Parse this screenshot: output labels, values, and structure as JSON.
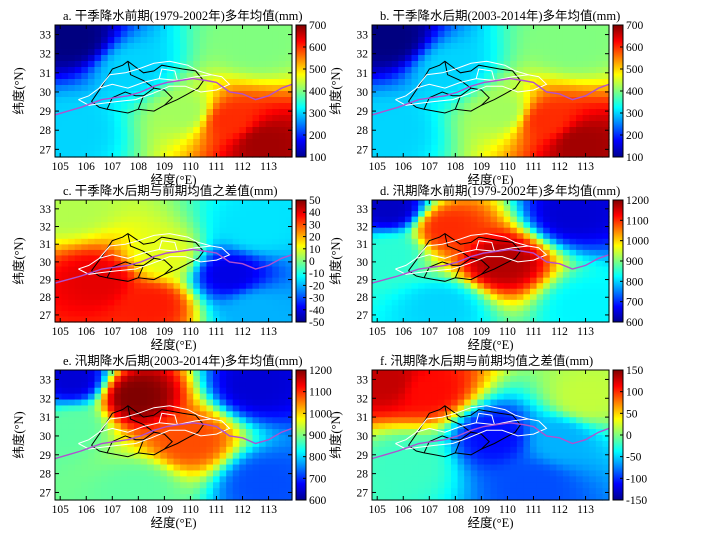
{
  "figure": {
    "x_axis_label": "经度(°E)",
    "y_axis_label": "纬度(°N)"
  },
  "chart_data": [
    {
      "type": "heatmap",
      "title": "a. 干季降水前期(1979-2002年)多年均值(mm)",
      "xlabel": "经度(°E)",
      "ylabel": "纬度(°N)",
      "xlim": [
        104.8,
        113.9
      ],
      "ylim": [
        26.6,
        33.5
      ],
      "xticks": [
        105,
        106,
        107,
        108,
        109,
        110,
        111,
        112,
        113
      ],
      "yticks": [
        27,
        28,
        29,
        30,
        31,
        32,
        33
      ],
      "colorbar": {
        "min": 100,
        "max": 700,
        "ticks": [
          100,
          200,
          300,
          400,
          500,
          600,
          700
        ]
      },
      "field_regions": [
        {
          "lon": 105.5,
          "lat": 32.8,
          "value": 100
        },
        {
          "lon": 107.8,
          "lat": 31.2,
          "value": 300
        },
        {
          "lon": 105.5,
          "lat": 28.0,
          "value": 300
        },
        {
          "lon": 109.8,
          "lat": 29.0,
          "value": 420
        },
        {
          "lon": 112.8,
          "lat": 27.3,
          "value": 680
        },
        {
          "lon": 111.5,
          "lat": 28.5,
          "value": 600
        },
        {
          "lon": 112.5,
          "lat": 32.5,
          "value": 400
        }
      ]
    },
    {
      "type": "heatmap",
      "title": "b. 干季降水后期(2003-2014年)多年均值(mm)",
      "xlabel": "经度(°E)",
      "ylabel": "纬度(°N)",
      "xlim": [
        104.8,
        113.9
      ],
      "ylim": [
        26.6,
        33.5
      ],
      "xticks": [
        105,
        106,
        107,
        108,
        109,
        110,
        111,
        112,
        113
      ],
      "yticks": [
        27,
        28,
        29,
        30,
        31,
        32,
        33
      ],
      "colorbar": {
        "min": 100,
        "max": 700,
        "ticks": [
          100,
          200,
          300,
          400,
          500,
          600,
          700
        ]
      },
      "field_regions": [
        {
          "lon": 105.5,
          "lat": 32.8,
          "value": 100
        },
        {
          "lon": 107.8,
          "lat": 31.2,
          "value": 300
        },
        {
          "lon": 105.5,
          "lat": 28.0,
          "value": 300
        },
        {
          "lon": 109.8,
          "lat": 29.0,
          "value": 420
        },
        {
          "lon": 112.8,
          "lat": 27.3,
          "value": 680
        },
        {
          "lon": 111.5,
          "lat": 28.5,
          "value": 600
        },
        {
          "lon": 112.5,
          "lat": 32.5,
          "value": 400
        }
      ]
    },
    {
      "type": "heatmap",
      "title": "c. 干季降水后期与前期均值之差值(mm)",
      "xlabel": "经度(°E)",
      "ylabel": "纬度(°N)",
      "xlim": [
        104.8,
        113.9
      ],
      "ylim": [
        26.6,
        33.5
      ],
      "xticks": [
        105,
        106,
        107,
        108,
        109,
        110,
        111,
        112,
        113
      ],
      "yticks": [
        27,
        28,
        29,
        30,
        31,
        32,
        33
      ],
      "colorbar": {
        "min": -50,
        "max": 50,
        "ticks": [
          50,
          40,
          30,
          20,
          10,
          0,
          -10,
          -20,
          -30,
          -40,
          -50
        ]
      },
      "field_regions": [
        {
          "lon": 106.5,
          "lat": 28.9,
          "value": 40
        },
        {
          "lon": 108.5,
          "lat": 27.6,
          "value": 35
        },
        {
          "lon": 109.0,
          "lat": 30.3,
          "value": 10
        },
        {
          "lon": 111.5,
          "lat": 29.3,
          "value": -40
        },
        {
          "lon": 112.5,
          "lat": 27.3,
          "value": -20
        },
        {
          "lon": 112.5,
          "lat": 31.8,
          "value": -15
        },
        {
          "lon": 105.3,
          "lat": 33.1,
          "value": 5
        }
      ]
    },
    {
      "type": "heatmap",
      "title": "d. 汛期降水前期(1979-2002年)多年均值(mm)",
      "xlabel": "经度(°E)",
      "ylabel": "纬度(°N)",
      "xlim": [
        104.8,
        113.9
      ],
      "ylim": [
        26.6,
        33.5
      ],
      "xticks": [
        105,
        106,
        107,
        108,
        109,
        110,
        111,
        112,
        113
      ],
      "yticks": [
        27,
        28,
        29,
        30,
        31,
        32,
        33
      ],
      "colorbar": {
        "min": 600,
        "max": 1200,
        "ticks": [
          600,
          700,
          800,
          900,
          1000,
          1100,
          1200
        ]
      },
      "field_regions": [
        {
          "lon": 107.7,
          "lat": 31.9,
          "value": 1100
        },
        {
          "lon": 109.8,
          "lat": 30.0,
          "value": 1170
        },
        {
          "lon": 105.5,
          "lat": 30.5,
          "value": 850
        },
        {
          "lon": 105.5,
          "lat": 33.0,
          "value": 640
        },
        {
          "lon": 112.5,
          "lat": 32.7,
          "value": 650
        },
        {
          "lon": 113.0,
          "lat": 27.5,
          "value": 820
        },
        {
          "lon": 107.5,
          "lat": 27.5,
          "value": 800
        }
      ]
    },
    {
      "type": "heatmap",
      "title": "e. 汛期降水后期(2003-2014年)多年均值(mm)",
      "xlabel": "经度(°E)",
      "ylabel": "纬度(°N)",
      "xlim": [
        104.8,
        113.9
      ],
      "ylim": [
        26.6,
        33.5
      ],
      "xticks": [
        105,
        106,
        107,
        108,
        109,
        110,
        111,
        112,
        113
      ],
      "yticks": [
        27,
        28,
        29,
        30,
        31,
        32,
        33
      ],
      "colorbar": {
        "min": 600,
        "max": 1200,
        "ticks": [
          600,
          700,
          800,
          900,
          1000,
          1100,
          1200
        ]
      },
      "field_regions": [
        {
          "lon": 107.9,
          "lat": 32.1,
          "value": 1200
        },
        {
          "lon": 110.0,
          "lat": 29.8,
          "value": 1080
        },
        {
          "lon": 105.5,
          "lat": 30.5,
          "value": 880
        },
        {
          "lon": 105.5,
          "lat": 33.0,
          "value": 650
        },
        {
          "lon": 112.5,
          "lat": 32.7,
          "value": 650
        },
        {
          "lon": 112.8,
          "lat": 27.5,
          "value": 720
        },
        {
          "lon": 108.0,
          "lat": 27.2,
          "value": 880
        }
      ]
    },
    {
      "type": "heatmap",
      "title": "f. 汛期降水后期与前期均值之差值(mm)",
      "xlabel": "经度(°E)",
      "ylabel": "纬度(°N)",
      "xlim": [
        104.8,
        113.9
      ],
      "ylim": [
        26.6,
        33.5
      ],
      "xticks": [
        105,
        106,
        107,
        108,
        109,
        110,
        111,
        112,
        113
      ],
      "yticks": [
        27,
        28,
        29,
        30,
        31,
        32,
        33
      ],
      "colorbar": {
        "min": -150,
        "max": 150,
        "ticks": [
          150,
          100,
          50,
          0,
          -50,
          -100,
          -150
        ]
      },
      "field_regions": [
        {
          "lon": 107.0,
          "lat": 32.4,
          "value": 110
        },
        {
          "lon": 105.4,
          "lat": 32.9,
          "value": 130
        },
        {
          "lon": 109.5,
          "lat": 30.0,
          "value": -110
        },
        {
          "lon": 112.0,
          "lat": 29.8,
          "value": -60
        },
        {
          "lon": 111.0,
          "lat": 27.4,
          "value": -90
        },
        {
          "lon": 113.0,
          "lat": 32.0,
          "value": 20
        },
        {
          "lon": 106.2,
          "lat": 28.6,
          "value": -20
        }
      ]
    }
  ]
}
